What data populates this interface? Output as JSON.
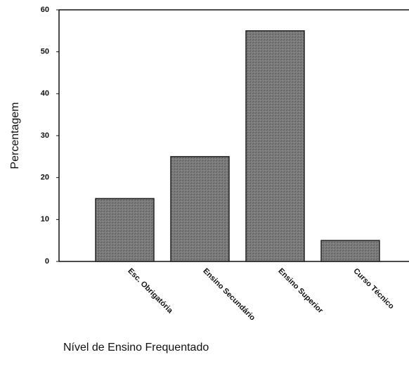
{
  "chart_data": {
    "type": "bar",
    "categories": [
      "Esc. Obrigatória",
      "Ensino Secundário",
      "Ensino Superior",
      "Curso Técnico"
    ],
    "values": [
      15,
      25,
      55,
      5
    ],
    "color": "#7a7a7a",
    "ylim": [
      0,
      60
    ],
    "yticks": [
      0,
      10,
      20,
      30,
      40,
      50,
      60
    ],
    "y_label": "Percentagem",
    "x_label": "Nível de Ensino Frequentado",
    "grid": false
  }
}
